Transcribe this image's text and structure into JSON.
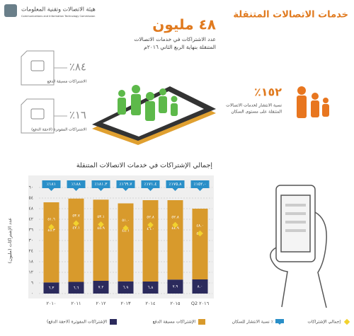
{
  "header": {
    "title": "خدمات الاتصالات المتنقلة",
    "logo_ar": "هيئة الاتصالات وتقنية المعلومات",
    "logo_en": "Communications and Information Technology Commission"
  },
  "highlight": {
    "value": "٤٨ مليون",
    "text_1": "عدد الاشتراكات في خدمات الاتصالات",
    "text_2": "المتنقلة بنهاية الربع الثاني ٢٠١٦م"
  },
  "prepaid": {
    "value": "٪٨٤",
    "label": "الاشتراكات مسبقة الدفع"
  },
  "postpaid": {
    "value": "٪١٦",
    "label": "الاشتراكات المفوترة (لاحقة الدفع)"
  },
  "penetration": {
    "value": "٪١٥٢",
    "text_1": "نسبة الانتشار لخدمات الاتصالات",
    "text_2": "المتنقلة على مستوى السكان"
  },
  "chart_data": {
    "type": "bar",
    "stacked": true,
    "title": "إجمالي الإشتراكات في خدمات الاتصالات المتنقلة",
    "y_label": "عدد الإشتراكات (مليون)",
    "categories": [
      "٢٠١٠",
      "٢٠١١",
      "٢٠١٢",
      "٢٠١٣",
      "٢٠١٤",
      "٢٠١٥",
      "Q2 ٢٠١٦"
    ],
    "ylim": [
      0,
      60
    ],
    "yticks": [
      {
        "value": 0,
        "label": "٠"
      },
      {
        "value": 6,
        "label": "٦"
      },
      {
        "value": 12,
        "label": "١٢"
      },
      {
        "value": 18,
        "label": "١٨"
      },
      {
        "value": 24,
        "label": "٢٤"
      },
      {
        "value": 30,
        "label": "٣٠"
      },
      {
        "value": 36,
        "label": "٣٦"
      },
      {
        "value": 42,
        "label": "٤٢"
      },
      {
        "value": 48,
        "label": "٤٨"
      },
      {
        "value": 54,
        "label": "٥٤"
      },
      {
        "value": 60,
        "label": "٦٠"
      }
    ],
    "grid": true,
    "series": [
      {
        "name": "الإشتراكات المفوترة (لاحقة الدفع)",
        "color": "#2b2a5c",
        "values": [
          6.3,
          6.6,
          7.2,
          6.9,
          6.8,
          7.9,
          8.0
        ],
        "value_labels": [
          "٦.٣",
          "٦.٦",
          "٧.٢",
          "٦.٩",
          "٦.٨",
          "٧.٩",
          "٨.٠"
        ]
      },
      {
        "name": "الإشتراكات مسبقة الدفع",
        "color": "#d89a2c",
        "values": [
          45.3,
          47.1,
          45.9,
          44.1,
          46.0,
          44.9,
          40.0
        ],
        "value_labels": [
          "٤٥.٣",
          "٤٧.١",
          "٤٥.٩",
          "٤٤.١",
          "٤٦.٠",
          "٤٤.٩",
          "٤٠.٠"
        ]
      },
      {
        "name": "إجمالي الإشتراكات",
        "type": "marker",
        "color": "#f2d22e",
        "values": [
          51.6,
          53.7,
          53.1,
          51.0,
          52.8,
          52.8,
          48.0
        ],
        "value_labels": [
          "٥١.٦",
          "٥٣.٧",
          "٥٣.١",
          "٥١.٠",
          "٥٢.٨",
          "٥٢.٨",
          "٤٨.٠"
        ]
      },
      {
        "name": "نسبة الانتشار للسكان ٪",
        "type": "flag",
        "color": "#2a8fc8",
        "values": [
          181,
          188,
          181.3,
          169.7,
          171.4,
          175.8,
          152
        ],
        "value_labels": [
          "٪١٨١",
          "٪١٨٨",
          "٪١٨١.٣",
          "٪١٦٩.٧",
          "٪١٧١.٤",
          "٪١٧٥.٨",
          "٪١٥٢.٠"
        ]
      }
    ]
  }
}
